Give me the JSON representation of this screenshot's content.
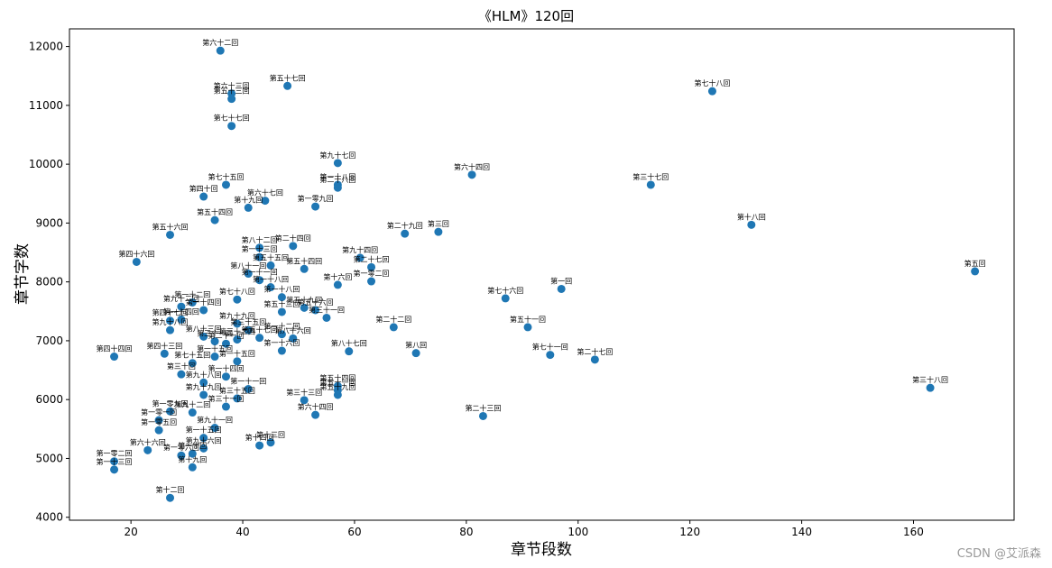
{
  "chart_data": {
    "type": "scatter",
    "title": "《HLM》120回",
    "xlabel": "章节段数",
    "ylabel": "章节字数",
    "xlim": [
      9,
      178
    ],
    "ylim": [
      3950,
      12300
    ],
    "xticks": [
      20,
      40,
      60,
      80,
      100,
      120,
      140,
      160
    ],
    "yticks": [
      4000,
      5000,
      6000,
      7000,
      8000,
      9000,
      10000,
      11000,
      12000
    ],
    "marker_color": "#1f77b4",
    "grid": false,
    "legend": "none",
    "points": [
      {
        "x": 36,
        "y": 11930,
        "label": "第六十二回"
      },
      {
        "x": 48,
        "y": 11330,
        "label": "第五十七回"
      },
      {
        "x": 38,
        "y": 11200,
        "label": "第六十三回"
      },
      {
        "x": 38,
        "y": 11110,
        "label": "第五十三回"
      },
      {
        "x": 124,
        "y": 11240,
        "label": "第七十八回"
      },
      {
        "x": 38,
        "y": 10650,
        "label": "第七十七回"
      },
      {
        "x": 57,
        "y": 10020,
        "label": "第九十七回"
      },
      {
        "x": 81,
        "y": 9820,
        "label": "第六十四回"
      },
      {
        "x": 57,
        "y": 9650,
        "label": "第一十八回"
      },
      {
        "x": 57,
        "y": 9600,
        "label": "第二十八回"
      },
      {
        "x": 113,
        "y": 9650,
        "label": "第三十七回"
      },
      {
        "x": 37,
        "y": 9650,
        "label": "第七十五回"
      },
      {
        "x": 33,
        "y": 9450,
        "label": "第四十回"
      },
      {
        "x": 44,
        "y": 9380,
        "label": "第六十七回"
      },
      {
        "x": 41,
        "y": 9260,
        "label": "第十九回"
      },
      {
        "x": 53,
        "y": 9280,
        "label": "第一零九回"
      },
      {
        "x": 35,
        "y": 9050,
        "label": "第五十四回"
      },
      {
        "x": 131,
        "y": 8970,
        "label": "第十八回"
      },
      {
        "x": 27,
        "y": 8800,
        "label": "第五十六回"
      },
      {
        "x": 69,
        "y": 8820,
        "label": "第二十九回"
      },
      {
        "x": 75,
        "y": 8850,
        "label": "第三回"
      },
      {
        "x": 21,
        "y": 8340,
        "label": "第四十六回"
      },
      {
        "x": 43,
        "y": 8580,
        "label": "第八十二回"
      },
      {
        "x": 49,
        "y": 8610,
        "label": "第二十四回"
      },
      {
        "x": 43,
        "y": 8420,
        "label": "第一十三回"
      },
      {
        "x": 45,
        "y": 8280,
        "label": "第五十五回"
      },
      {
        "x": 51,
        "y": 8220,
        "label": "第五十四回"
      },
      {
        "x": 61,
        "y": 8410,
        "label": "第九十四回"
      },
      {
        "x": 63,
        "y": 8250,
        "label": "第二十七回"
      },
      {
        "x": 63,
        "y": 8010,
        "label": "第一零二回"
      },
      {
        "x": 171,
        "y": 8180,
        "label": "第五回"
      },
      {
        "x": 41,
        "y": 8140,
        "label": "第八十一回"
      },
      {
        "x": 43,
        "y": 8030,
        "label": "第一十一回"
      },
      {
        "x": 45,
        "y": 7910,
        "label": "第一十八回"
      },
      {
        "x": 57,
        "y": 7950,
        "label": "第十六回"
      },
      {
        "x": 97,
        "y": 7880,
        "label": "第一回"
      },
      {
        "x": 87,
        "y": 7720,
        "label": "第七十六回"
      },
      {
        "x": 39,
        "y": 7700,
        "label": "第七十八回"
      },
      {
        "x": 47,
        "y": 7740,
        "label": "第一十八回"
      },
      {
        "x": 31,
        "y": 7650,
        "label": "第一十二回"
      },
      {
        "x": 29,
        "y": 7580,
        "label": "第九十二回"
      },
      {
        "x": 51,
        "y": 7560,
        "label": "第五十九回"
      },
      {
        "x": 53,
        "y": 7520,
        "label": "第五十六回"
      },
      {
        "x": 55,
        "y": 7390,
        "label": "第三十一回"
      },
      {
        "x": 33,
        "y": 7520,
        "label": "第一十四回"
      },
      {
        "x": 27,
        "y": 7340,
        "label": "第四十七回"
      },
      {
        "x": 29,
        "y": 7360,
        "label": "第一十四回"
      },
      {
        "x": 39,
        "y": 7290,
        "label": "第九十九回"
      },
      {
        "x": 47,
        "y": 7490,
        "label": "第五十三回"
      },
      {
        "x": 27,
        "y": 7180,
        "label": "第九十八回"
      },
      {
        "x": 67,
        "y": 7230,
        "label": "第二十二回"
      },
      {
        "x": 91,
        "y": 7230,
        "label": "第五十一回"
      },
      {
        "x": 41,
        "y": 7180,
        "label": "第三十五回"
      },
      {
        "x": 47,
        "y": 7110,
        "label": "第一十二回"
      },
      {
        "x": 49,
        "y": 7040,
        "label": "第八十六回"
      },
      {
        "x": 33,
        "y": 7070,
        "label": "第八十三回"
      },
      {
        "x": 35,
        "y": 6990,
        "label": "第三十一回"
      },
      {
        "x": 37,
        "y": 6950,
        "label": "第二十一回"
      },
      {
        "x": 39,
        "y": 7020,
        "label": "第三十二回"
      },
      {
        "x": 43,
        "y": 7050,
        "label": "第五十七回"
      },
      {
        "x": 17,
        "y": 6730,
        "label": "第四十四回"
      },
      {
        "x": 26,
        "y": 6780,
        "label": "第四十三回"
      },
      {
        "x": 59,
        "y": 6820,
        "label": "第八十七回"
      },
      {
        "x": 71,
        "y": 6790,
        "label": "第八回"
      },
      {
        "x": 95,
        "y": 6760,
        "label": "第七十一回"
      },
      {
        "x": 103,
        "y": 6680,
        "label": "第二十七回"
      },
      {
        "x": 47,
        "y": 6830,
        "label": "第一十六回"
      },
      {
        "x": 35,
        "y": 6730,
        "label": "第一十五回"
      },
      {
        "x": 39,
        "y": 6650,
        "label": "第一十五回"
      },
      {
        "x": 31,
        "y": 6620,
        "label": "第七十五回"
      },
      {
        "x": 29,
        "y": 6430,
        "label": "第三十回"
      },
      {
        "x": 37,
        "y": 6390,
        "label": "第一十四回"
      },
      {
        "x": 33,
        "y": 6290,
        "label": "第九十八回"
      },
      {
        "x": 41,
        "y": 6180,
        "label": "第一十一回"
      },
      {
        "x": 39,
        "y": 6020,
        "label": "第三十五回"
      },
      {
        "x": 57,
        "y": 6230,
        "label": "第五十四回"
      },
      {
        "x": 57,
        "y": 6080,
        "label": "第五十九回"
      },
      {
        "x": 57,
        "y": 6160,
        "label": "第五十一回"
      },
      {
        "x": 163,
        "y": 6200,
        "label": "第三十八回"
      },
      {
        "x": 51,
        "y": 5990,
        "label": "第三十三回"
      },
      {
        "x": 53,
        "y": 5740,
        "label": "第六十四回"
      },
      {
        "x": 83,
        "y": 5720,
        "label": "第二十三回"
      },
      {
        "x": 33,
        "y": 6080,
        "label": "第九十九回"
      },
      {
        "x": 27,
        "y": 5800,
        "label": "第一零九回"
      },
      {
        "x": 31,
        "y": 5780,
        "label": "第九十二回"
      },
      {
        "x": 37,
        "y": 5880,
        "label": "第三十一回"
      },
      {
        "x": 25,
        "y": 5650,
        "label": "第一零一回"
      },
      {
        "x": 25,
        "y": 5480,
        "label": "第一零五回"
      },
      {
        "x": 35,
        "y": 5520,
        "label": "第九十一回"
      },
      {
        "x": 33,
        "y": 5350,
        "label": "第一十五回"
      },
      {
        "x": 45,
        "y": 5270,
        "label": "第十三回"
      },
      {
        "x": 43,
        "y": 5220,
        "label": "第十四回"
      },
      {
        "x": 23,
        "y": 5140,
        "label": "第六十六回"
      },
      {
        "x": 29,
        "y": 5050,
        "label": "第一零六回"
      },
      {
        "x": 33,
        "y": 5170,
        "label": "第九十六回"
      },
      {
        "x": 31,
        "y": 5080,
        "label": "第一十回"
      },
      {
        "x": 31,
        "y": 4850,
        "label": "第十九回"
      },
      {
        "x": 17,
        "y": 4950,
        "label": "第一零二回"
      },
      {
        "x": 17,
        "y": 4810,
        "label": "第一十三回"
      },
      {
        "x": 27,
        "y": 4330,
        "label": "第十二回"
      }
    ]
  },
  "watermark": "CSDN @艾派森"
}
